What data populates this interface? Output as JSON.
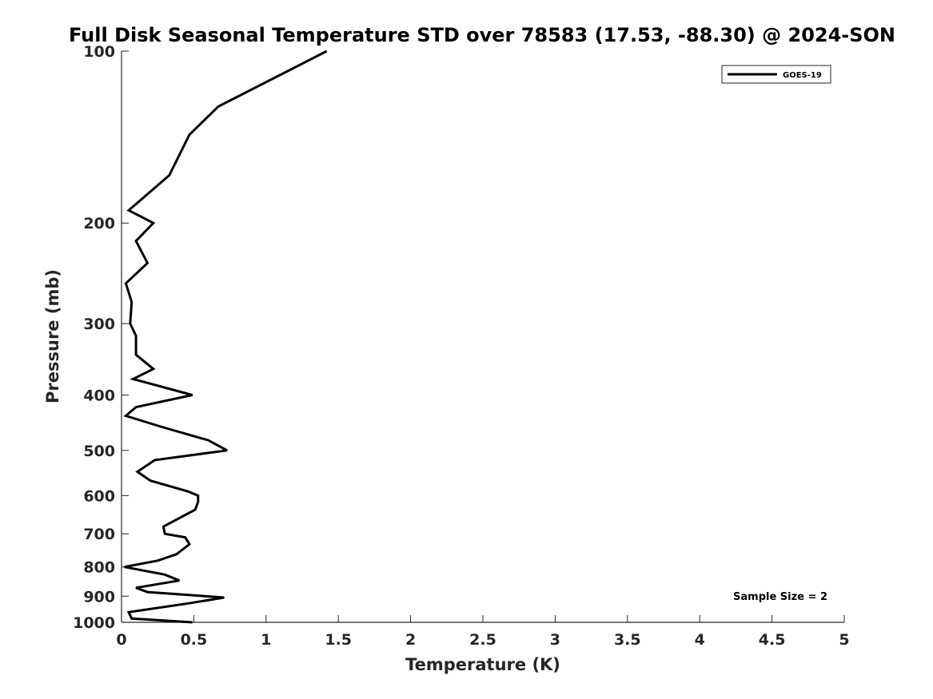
{
  "chart_data": {
    "type": "line",
    "title": "Full Disk Seasonal Temperature STD over 78583 (17.53, -88.30) @ 2024-SON",
    "xlabel": "Temperature (K)",
    "ylabel": "Pressure (mb)",
    "xlim": [
      0,
      5
    ],
    "ylim": [
      100,
      1000
    ],
    "yscale": "log",
    "yreversed": true,
    "xticks": [
      0,
      0.5,
      1,
      1.5,
      2,
      2.5,
      3,
      3.5,
      4,
      4.5,
      5
    ],
    "xtick_labels": [
      "0",
      "0.5",
      "1",
      "1.5",
      "2",
      "2.5",
      "3",
      "3.5",
      "4",
      "4.5",
      "5"
    ],
    "yticks": [
      100,
      200,
      300,
      400,
      500,
      600,
      700,
      800,
      900,
      1000
    ],
    "ytick_labels": [
      "100",
      "200",
      "300",
      "400",
      "500",
      "600",
      "700",
      "800",
      "900",
      "1000"
    ],
    "grid": false,
    "legend_position": "top-right",
    "series": [
      {
        "name": "GOES-19",
        "color": "#000000",
        "pressure": [
          100,
          125,
          140,
          165,
          190,
          200,
          215,
          235,
          255,
          275,
          300,
          315,
          340,
          360,
          375,
          400,
          420,
          435,
          455,
          480,
          500,
          520,
          545,
          565,
          590,
          600,
          615,
          635,
          680,
          700,
          710,
          730,
          760,
          780,
          800,
          825,
          845,
          870,
          885,
          905,
          925,
          960,
          985,
          1000
        ],
        "values": [
          1.42,
          0.67,
          0.47,
          0.33,
          0.05,
          0.22,
          0.1,
          0.18,
          0.03,
          0.07,
          0.06,
          0.1,
          0.1,
          0.22,
          0.08,
          0.49,
          0.1,
          0.03,
          0.28,
          0.6,
          0.73,
          0.23,
          0.11,
          0.2,
          0.46,
          0.53,
          0.53,
          0.51,
          0.29,
          0.3,
          0.44,
          0.47,
          0.38,
          0.25,
          0.02,
          0.3,
          0.4,
          0.1,
          0.18,
          0.71,
          0.48,
          0.05,
          0.07,
          0.49
        ]
      }
    ],
    "annotation": "Sample Size = 2"
  }
}
